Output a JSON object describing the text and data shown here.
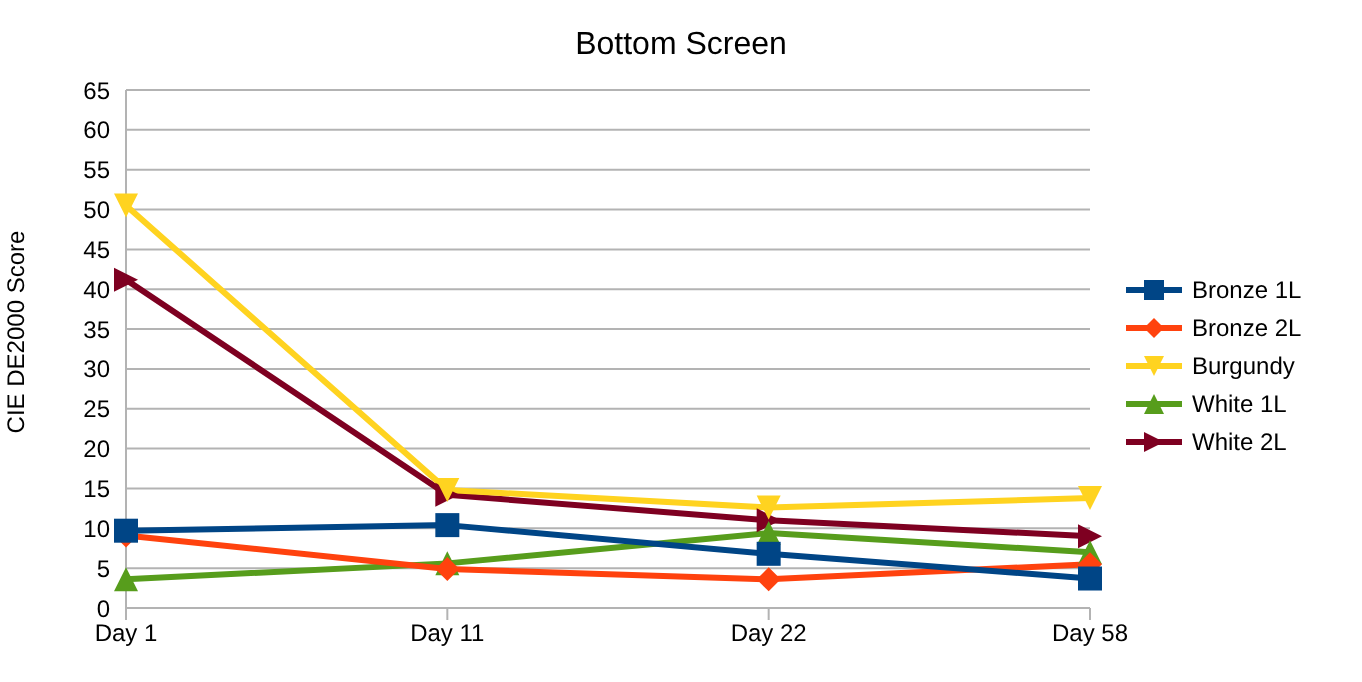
{
  "chart_data": {
    "type": "line",
    "title": "Bottom Screen",
    "ylabel": "CIE DE2000 Score",
    "categories": [
      "Day 1",
      "Day 11",
      "Day 22",
      "Day 58"
    ],
    "series": [
      {
        "name": "Bronze 1L",
        "color": "#004586",
        "marker": "square",
        "values": [
          9.7,
          10.4,
          6.8,
          3.7
        ]
      },
      {
        "name": "Bronze 2L",
        "color": "#ff420e",
        "marker": "diamond",
        "values": [
          9.1,
          4.9,
          3.6,
          5.5
        ]
      },
      {
        "name": "Burgundy",
        "color": "#ffd320",
        "marker": "triangle-down",
        "values": [
          50.5,
          14.8,
          12.6,
          13.8
        ]
      },
      {
        "name": "White 1L",
        "color": "#579d1c",
        "marker": "triangle",
        "values": [
          3.6,
          5.6,
          9.4,
          7.0
        ]
      },
      {
        "name": "White 2L",
        "color": "#7e0021",
        "marker": "triangle-right",
        "values": [
          41.2,
          14.2,
          11.0,
          9.0
        ]
      }
    ],
    "ylim": [
      0,
      65
    ],
    "yticks": [
      0,
      5,
      10,
      15,
      20,
      25,
      30,
      35,
      40,
      45,
      50,
      55,
      60,
      65
    ],
    "grid": "y",
    "legend": "right"
  }
}
